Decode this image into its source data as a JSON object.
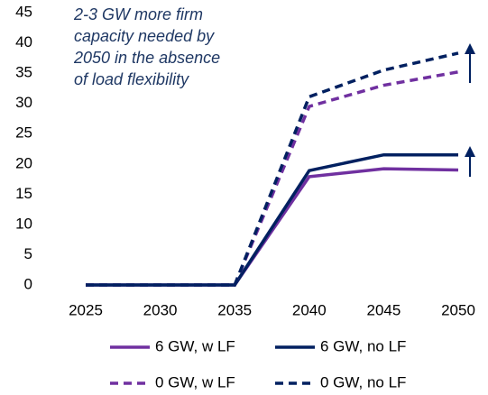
{
  "chart_data": {
    "type": "line",
    "annotation": [
      "2-3 GW more firm",
      "capacity needed by",
      "2050 in the absence",
      "of load flexibility"
    ],
    "categories": [
      "2025",
      "2030",
      "2035",
      "2040",
      "2045",
      "2050"
    ],
    "series": [
      {
        "name": "6 GW, w LF",
        "color": "#7030a0",
        "dashed": false,
        "values": [
          0,
          0,
          0,
          17.9,
          19.2,
          19.0
        ]
      },
      {
        "name": "6 GW, no LF",
        "color": "#002060",
        "dashed": false,
        "values": [
          0,
          0,
          0,
          18.9,
          21.5,
          21.5
        ]
      },
      {
        "name": "0 GW, w LF",
        "color": "#7030a0",
        "dashed": true,
        "values": [
          0,
          0,
          0,
          29.5,
          33.0,
          35.2
        ]
      },
      {
        "name": "0 GW, no LF",
        "color": "#002060",
        "dashed": true,
        "values": [
          0,
          0,
          0,
          31.1,
          35.5,
          38.3
        ]
      }
    ],
    "ylim": [
      0,
      45
    ],
    "yticks": [
      0,
      5,
      10,
      15,
      20,
      25,
      30,
      35,
      40,
      45
    ],
    "grid": false
  }
}
